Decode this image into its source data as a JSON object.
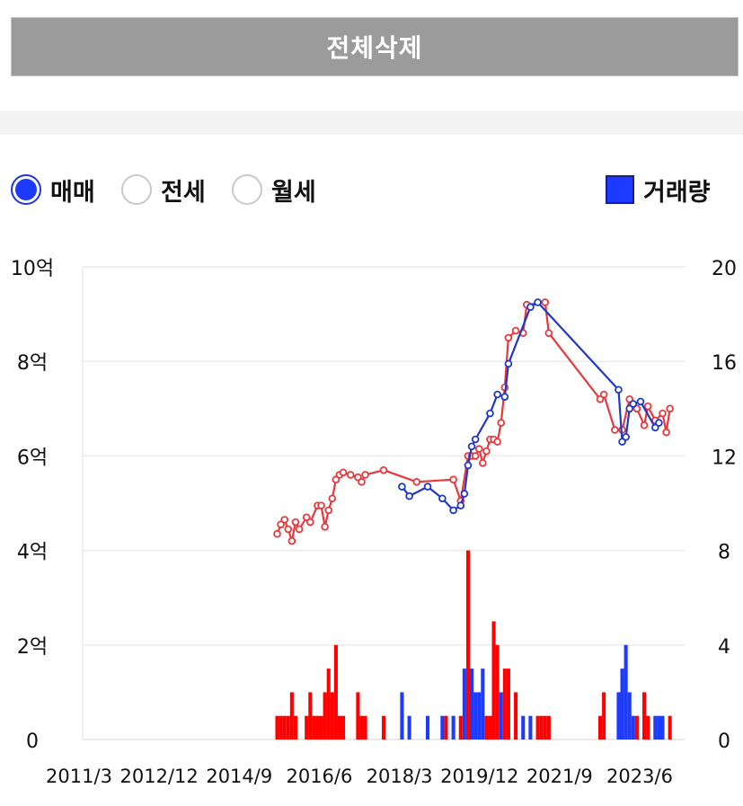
{
  "header": {
    "delete_all_label": "전체삭제"
  },
  "tabs": [
    {
      "label": "매매",
      "checked": true
    },
    {
      "label": "전세",
      "checked": false
    },
    {
      "label": "월세",
      "checked": false
    }
  ],
  "legend": {
    "volume_label": "거래량",
    "color": "#1c3bff"
  },
  "colors": {
    "sale_line": "#e8383b",
    "jeonse_line": "#2038c8",
    "red_bar": "#ff0000",
    "blue_bar": "#1c3bff"
  },
  "chart_data": {
    "type": "line",
    "x_ticks": [
      "2011/3",
      "2012/12",
      "2014/9",
      "2016/6",
      "2018/3",
      "2019/12",
      "2021/9",
      "2023/6"
    ],
    "y_left": {
      "ticks": [
        "0",
        "2억",
        "4억",
        "6억",
        "8억",
        "10억"
      ],
      "range": [
        0,
        10
      ],
      "unit": "억"
    },
    "y_right": {
      "ticks": [
        "0",
        "4",
        "8",
        "12",
        "16",
        "20"
      ],
      "range": [
        0,
        20
      ]
    },
    "grid": true,
    "x_range": [
      "2011-03",
      "2024-11"
    ],
    "series": [
      {
        "points": [
          [
            "2015-08",
            4.35
          ],
          [
            "2015-09",
            4.55
          ],
          [
            "2015-10",
            4.65
          ],
          [
            "2015-11",
            4.45
          ],
          [
            "2015-12",
            4.2
          ],
          [
            "2016-01",
            4.6
          ],
          [
            "2016-02",
            4.45
          ],
          [
            "2016-04",
            4.7
          ],
          [
            "2016-05",
            4.6
          ],
          [
            "2016-07",
            4.95
          ],
          [
            "2016-08",
            4.95
          ],
          [
            "2016-09",
            4.5
          ],
          [
            "2016-10",
            4.85
          ],
          [
            "2016-11",
            5.1
          ],
          [
            "2016-12",
            5.5
          ],
          [
            "2017-01",
            5.6
          ],
          [
            "2017-02",
            5.65
          ],
          [
            "2017-04",
            5.6
          ],
          [
            "2017-06",
            5.55
          ],
          [
            "2017-07",
            5.45
          ],
          [
            "2017-08",
            5.6
          ],
          [
            "2018-01",
            5.7
          ],
          [
            "2018-10",
            5.45
          ],
          [
            "2019-08",
            5.5
          ],
          [
            "2019-10",
            5.05
          ],
          [
            "2019-12",
            6.0
          ],
          [
            "2020-01",
            6.0
          ],
          [
            "2020-02",
            6.0
          ],
          [
            "2020-03",
            6.15
          ],
          [
            "2020-04",
            5.85
          ],
          [
            "2020-05",
            6.1
          ],
          [
            "2020-06",
            6.35
          ],
          [
            "2020-07",
            6.35
          ],
          [
            "2020-08",
            6.3
          ],
          [
            "2020-09",
            6.7
          ],
          [
            "2020-10",
            7.45
          ],
          [
            "2020-11",
            8.5
          ],
          [
            "2021-01",
            8.65
          ],
          [
            "2021-03",
            8.6
          ],
          [
            "2021-04",
            9.2
          ],
          [
            "2021-09",
            9.25
          ],
          [
            "2021-10",
            8.6
          ],
          [
            "2022-12",
            7.2
          ],
          [
            "2023-01",
            7.3
          ],
          [
            "2023-04",
            6.55
          ],
          [
            "2023-06",
            6.55
          ],
          [
            "2023-08",
            7.2
          ],
          [
            "2023-10",
            7.0
          ],
          [
            "2023-12",
            6.65
          ],
          [
            "2024-01",
            7.05
          ],
          [
            "2024-03",
            6.75
          ],
          [
            "2024-05",
            6.9
          ],
          [
            "2024-06",
            6.5
          ],
          [
            "2024-07",
            7.0
          ]
        ]
      },
      {
        "points": [
          [
            "2018-06",
            5.35
          ],
          [
            "2018-08",
            5.15
          ],
          [
            "2019-01",
            5.35
          ],
          [
            "2019-05",
            5.1
          ],
          [
            "2019-08",
            4.85
          ],
          [
            "2019-10",
            4.95
          ],
          [
            "2019-11",
            5.2
          ],
          [
            "2019-12",
            5.8
          ],
          [
            "2020-01",
            6.2
          ],
          [
            "2020-02",
            6.35
          ],
          [
            "2020-06",
            6.9
          ],
          [
            "2020-08",
            7.3
          ],
          [
            "2020-10",
            7.25
          ],
          [
            "2020-11",
            7.95
          ],
          [
            "2021-05",
            9.15
          ],
          [
            "2021-07",
            9.25
          ],
          [
            "2023-05",
            7.4
          ],
          [
            "2023-06",
            6.3
          ],
          [
            "2023-07",
            6.4
          ],
          [
            "2023-08",
            7.0
          ],
          [
            "2023-09",
            7.1
          ],
          [
            "2023-11",
            7.15
          ],
          [
            "2024-03",
            6.6
          ],
          [
            "2024-04",
            6.7
          ]
        ]
      }
    ],
    "volume_bars": [
      [
        "2015-08",
        1,
        "red"
      ],
      [
        "2015-09",
        1,
        "red"
      ],
      [
        "2015-10",
        1,
        "red"
      ],
      [
        "2015-11",
        1,
        "red"
      ],
      [
        "2015-12",
        2,
        "red"
      ],
      [
        "2016-01",
        1,
        "red"
      ],
      [
        "2016-04",
        1,
        "red"
      ],
      [
        "2016-05",
        2,
        "red"
      ],
      [
        "2016-06",
        1,
        "red"
      ],
      [
        "2016-07",
        1,
        "red"
      ],
      [
        "2016-08",
        1,
        "red"
      ],
      [
        "2016-09",
        2,
        "red"
      ],
      [
        "2016-10",
        3,
        "red"
      ],
      [
        "2016-11",
        2,
        "red"
      ],
      [
        "2016-12",
        4,
        "red"
      ],
      [
        "2017-01",
        1,
        "red"
      ],
      [
        "2017-02",
        1,
        "red"
      ],
      [
        "2017-06",
        2,
        "red"
      ],
      [
        "2017-07",
        1,
        "red"
      ],
      [
        "2017-08",
        1,
        "red"
      ],
      [
        "2018-01",
        1,
        "red"
      ],
      [
        "2018-06",
        2,
        "blue"
      ],
      [
        "2018-08",
        1,
        "blue"
      ],
      [
        "2019-01",
        1,
        "blue"
      ],
      [
        "2019-05",
        1,
        "blue"
      ],
      [
        "2019-06",
        1,
        "red"
      ],
      [
        "2019-08",
        1,
        "blue"
      ],
      [
        "2019-10",
        1,
        "red"
      ],
      [
        "2019-11",
        3,
        "blue"
      ],
      [
        "2019-12",
        8,
        "red"
      ],
      [
        "2020-01",
        3,
        "blue"
      ],
      [
        "2020-02",
        2,
        "blue"
      ],
      [
        "2020-03",
        2,
        "blue"
      ],
      [
        "2020-04",
        3,
        "blue"
      ],
      [
        "2020-05",
        1,
        "red"
      ],
      [
        "2020-06",
        1,
        "red"
      ],
      [
        "2020-07",
        5,
        "red"
      ],
      [
        "2020-08",
        4,
        "red"
      ],
      [
        "2020-09",
        2,
        "blue"
      ],
      [
        "2020-10",
        3,
        "red"
      ],
      [
        "2020-11",
        3,
        "red"
      ],
      [
        "2021-01",
        2,
        "red"
      ],
      [
        "2021-03",
        1,
        "blue"
      ],
      [
        "2021-05",
        1,
        "blue"
      ],
      [
        "2021-07",
        1,
        "red"
      ],
      [
        "2021-08",
        1,
        "red"
      ],
      [
        "2021-09",
        1,
        "red"
      ],
      [
        "2021-10",
        1,
        "red"
      ],
      [
        "2022-12",
        1,
        "red"
      ],
      [
        "2023-01",
        2,
        "red"
      ],
      [
        "2023-05",
        2,
        "blue"
      ],
      [
        "2023-06",
        3,
        "blue"
      ],
      [
        "2023-07",
        4,
        "blue"
      ],
      [
        "2023-08",
        2,
        "blue"
      ],
      [
        "2023-09",
        1,
        "blue"
      ],
      [
        "2023-10",
        1,
        "red"
      ],
      [
        "2023-12",
        2,
        "red"
      ],
      [
        "2024-01",
        1,
        "red"
      ],
      [
        "2024-03",
        1,
        "blue"
      ],
      [
        "2024-04",
        1,
        "blue"
      ],
      [
        "2024-05",
        1,
        "blue"
      ],
      [
        "2024-07",
        1,
        "red"
      ]
    ]
  }
}
